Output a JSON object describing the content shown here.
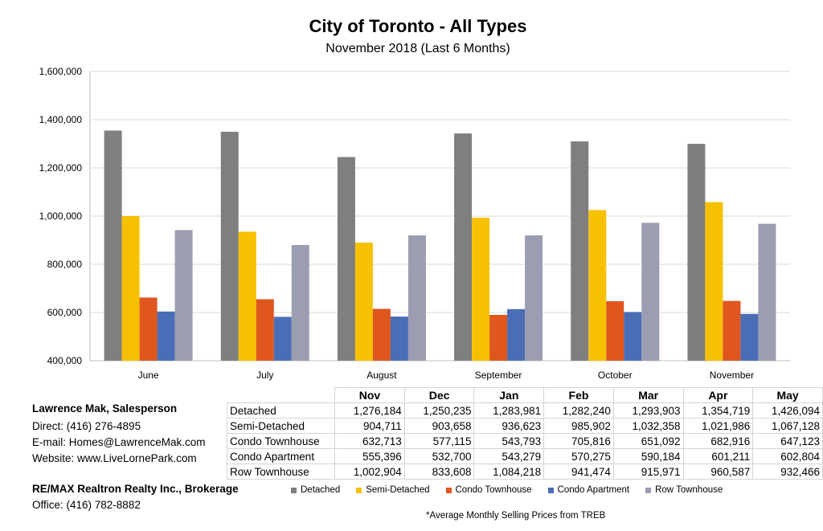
{
  "chart_data": {
    "type": "bar",
    "title": "City of Toronto - All Types",
    "subtitle": "November 2018 (Last 6 Months)",
    "categories": [
      "June",
      "July",
      "August",
      "September",
      "October",
      "November"
    ],
    "series": [
      {
        "name": "Detached",
        "color": "#7f7f7f",
        "values": [
          1355000,
          1350000,
          1245000,
          1343000,
          1310000,
          1300000
        ]
      },
      {
        "name": "Semi-Detached",
        "color": "#f5c100",
        "values": [
          1000000,
          935000,
          890000,
          993000,
          1025000,
          1058000
        ]
      },
      {
        "name": "Condo Townhouse",
        "color": "#e0561f",
        "values": [
          662000,
          655000,
          615000,
          590000,
          647000,
          648000
        ]
      },
      {
        "name": "Condo Apartment",
        "color": "#4a6db5",
        "values": [
          604000,
          582000,
          583000,
          614000,
          602000,
          594000
        ]
      },
      {
        "name": "Row Townhouse",
        "color": "#9b9db1",
        "values": [
          942000,
          880000,
          920000,
          920000,
          972000,
          968000
        ]
      }
    ],
    "ylim": [
      400000,
      1600000
    ],
    "yticks": [
      400000,
      600000,
      800000,
      1000000,
      1200000,
      1400000,
      1600000
    ],
    "ytick_labels": [
      "400,000",
      "600,000",
      "800,000",
      "1,000,000",
      "1,200,000",
      "1,400,000",
      "1,600,000"
    ],
    "grid": true,
    "legend_position": "bottom"
  },
  "table": {
    "headers": [
      "Nov",
      "Dec",
      "Jan",
      "Feb",
      "Mar",
      "Apr",
      "May"
    ],
    "rows": [
      {
        "label": "Detached",
        "values": [
          "1,276,184",
          "1,250,235",
          "1,283,981",
          "1,282,240",
          "1,293,903",
          "1,354,719",
          "1,426,094"
        ]
      },
      {
        "label": "Semi-Detached",
        "values": [
          "904,711",
          "903,658",
          "936,623",
          "985,902",
          "1,032,358",
          "1,021,986",
          "1,067,128"
        ]
      },
      {
        "label": "Condo Townhouse",
        "values": [
          "632,713",
          "577,115",
          "543,793",
          "705,816",
          "651,092",
          "682,916",
          "647,123"
        ]
      },
      {
        "label": "Condo Apartment",
        "values": [
          "555,396",
          "532,700",
          "543,279",
          "570,275",
          "590,184",
          "601,211",
          "602,804"
        ]
      },
      {
        "label": "Row Townhouse",
        "values": [
          "1,002,904",
          "833,608",
          "1,084,218",
          "941,474",
          "915,971",
          "960,587",
          "932,466"
        ]
      }
    ]
  },
  "contact": {
    "name": "Lawrence Mak, Salesperson",
    "direct": "Direct:  (416) 276-4895",
    "email": "E-mail:  Homes@LawrenceMak.com",
    "website": "Website: www.LiveLornePark.com",
    "brokerage": "RE/MAX Realtron Realty Inc., Brokerage",
    "office": "Office: (416) 782-8882"
  },
  "footnote": "*Average Monthly Selling Prices  from TREB"
}
